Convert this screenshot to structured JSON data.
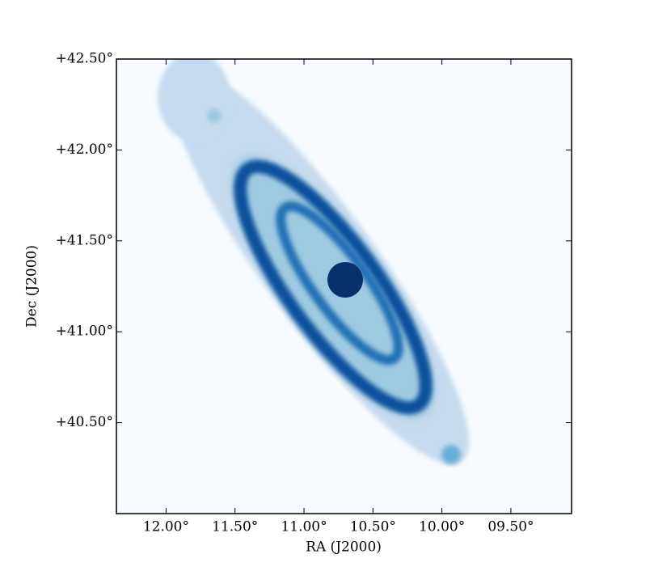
{
  "chart_data": {
    "type": "image",
    "xlabel": "RA (J2000)",
    "ylabel": "Dec (J2000)",
    "xlim": [
      12.36,
      9.06
    ],
    "ylim": [
      40.0,
      42.5
    ],
    "xticks": [
      {
        "value": 12.0,
        "label": "12.00°"
      },
      {
        "value": 11.5,
        "label": "11.50°"
      },
      {
        "value": 11.0,
        "label": "11.00°"
      },
      {
        "value": 10.5,
        "label": "10.50°"
      },
      {
        "value": 10.0,
        "label": "10.00°"
      },
      {
        "value": 9.5,
        "label": "09.50°"
      }
    ],
    "yticks": [
      {
        "value": 42.5,
        "label": "+42.50°"
      },
      {
        "value": 42.0,
        "label": "+42.00°"
      },
      {
        "value": 41.5,
        "label": "+41.50°"
      },
      {
        "value": 41.0,
        "label": "+41.00°"
      },
      {
        "value": 40.5,
        "label": "+40.50°"
      }
    ],
    "colormap": "Blues"
  }
}
